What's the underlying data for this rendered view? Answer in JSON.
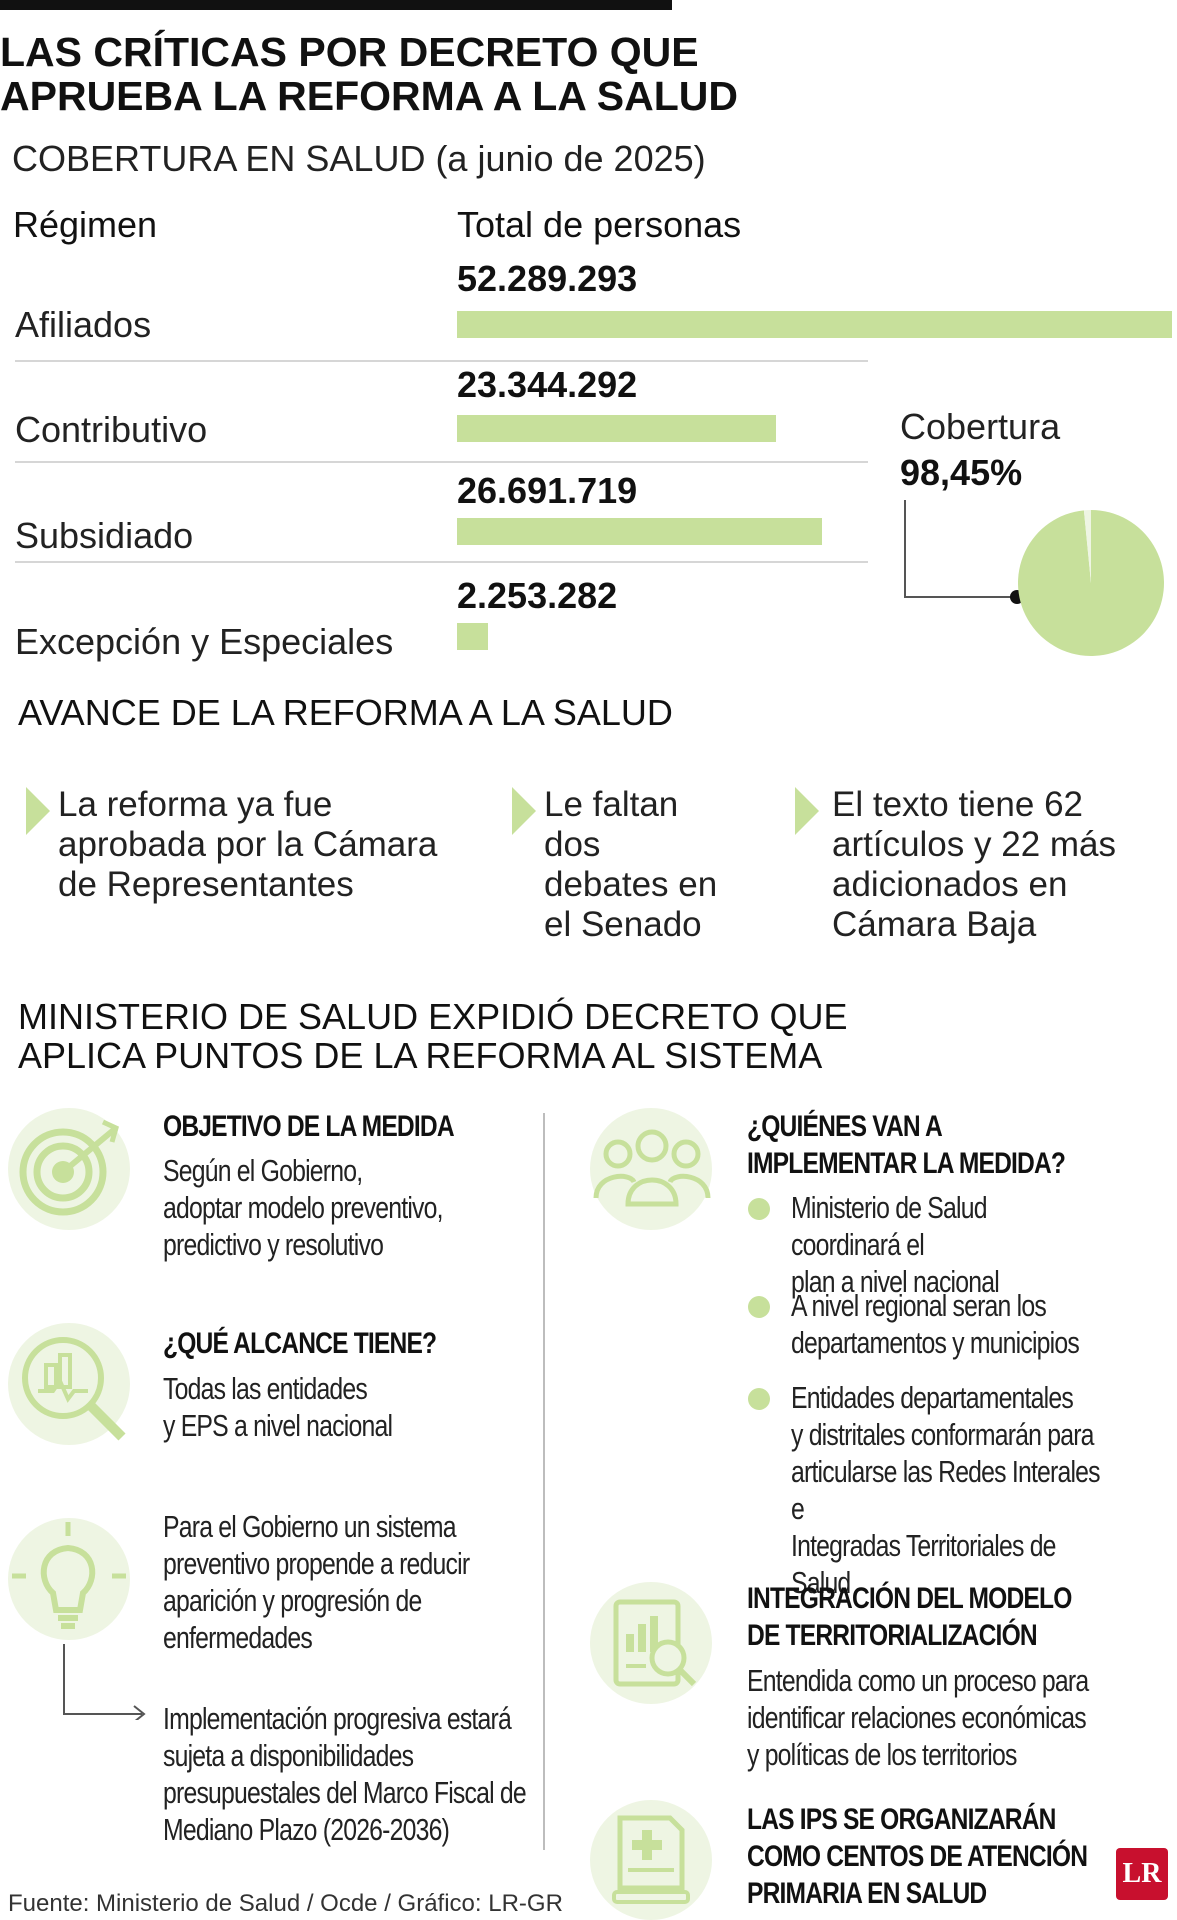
{
  "title": "LAS CRÍTICAS POR DECRETO QUE\nAPRUEBA LA REFORMA A LA SALUD",
  "subtitle": "COBERTURA EN SALUD (a junio de 2025)",
  "column_headers": {
    "regimen": "Régimen",
    "total": "Total de personas"
  },
  "coverage": {
    "label": "Cobertura",
    "value": "98,45%",
    "fraction": 0.9845
  },
  "chart_data": {
    "type": "bar",
    "title": "COBERTURA EN SALUD (a junio de 2025)",
    "categories": [
      "Afiliados",
      "Contributivo",
      "Subsidiado",
      "Excepción y Especiales"
    ],
    "values": [
      52289293,
      23344292,
      26691719,
      2253282
    ],
    "value_labels": [
      "52.289.293",
      "23.344.292",
      "26.691.719",
      "2.253.282"
    ],
    "xlabel": "Total de personas",
    "ylabel": "Régimen",
    "xlim": [
      0,
      52289293
    ],
    "color": "#c7e09b",
    "pie": {
      "type": "pie",
      "label": "Cobertura",
      "value_label": "98,45%",
      "slices": [
        98.45,
        1.55
      ]
    }
  },
  "avance": {
    "title": "AVANCE DE LA REFORMA A LA SALUD",
    "items": [
      "La reforma ya fue\naprobada por la Cámara\nde Representantes",
      "Le faltan\ndos\ndebates en\nel Senado",
      "El texto tiene 62\nartículos y 22 más\nadicionados en\nCámara Baja"
    ]
  },
  "ministerio": {
    "title": "MINISTERIO DE SALUD EXPIDIÓ DECRETO QUE\nAPLICA PUNTOS DE LA REFORMA AL SISTEMA",
    "objetivo": {
      "heading": "OBJETIVO DE LA MEDIDA",
      "text": "Según el Gobierno,\nadoptar modelo preventivo,\npredictivo y resolutivo"
    },
    "alcance": {
      "heading": "¿QUÉ ALCANCE TIENE?",
      "text": "Todas las entidades\ny EPS a nivel nacional"
    },
    "preventivo": "Para el Gobierno un sistema\npreventivo propende a reducir\naparición y progresión de\nenfermedades",
    "implementacion": "Implementación progresiva estará\nsujeta a disponibilidades\npresupuestales del Marco Fiscal de\nMediano Plazo (2026-2036)",
    "quienes": {
      "heading": "¿QUIÉNES VAN A\nIMPLEMENTAR LA MEDIDA?",
      "items": [
        "Ministerio de Salud coordinará el\nplan a nivel nacional",
        "A nivel regional seran los\ndepartamentos y municipios",
        "Entidades departamentales\ny distritales conformarán para\narticularse las Redes Interales e\nIntegradas Territoriales de Salud"
      ]
    },
    "integracion": {
      "heading": "INTEGRACIÓN DEL MODELO\nDE TERRITORIALIZACIÓN",
      "text": "Entendida como un proceso para\nidentificar relaciones económicas\ny políticas de los territorios"
    },
    "ips": {
      "heading": "LAS IPS SE ORGANIZARÁN\nCOMO CENTOS DE ATENCIÓN\nPRIMARIA EN SALUD"
    }
  },
  "source": "Fuente: Ministerio de Salud / Ocde / Gráfico: LR-GR",
  "logo": "LR",
  "icons": [
    "target-icon",
    "magnifier-chart-icon",
    "lightbulb-icon",
    "people-icon",
    "finance-report-icon",
    "medical-book-icon"
  ]
}
